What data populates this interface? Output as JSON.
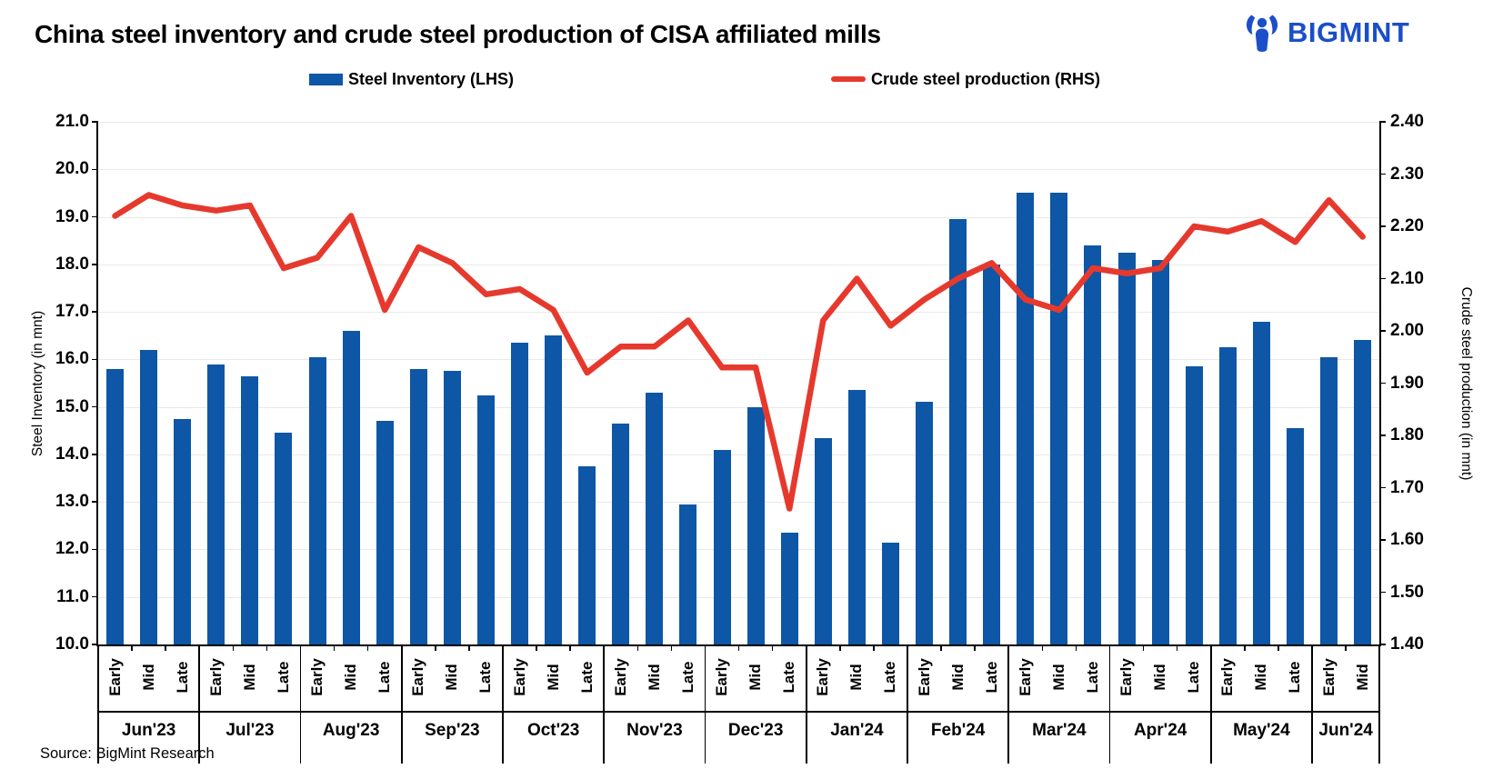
{
  "title": "China steel inventory and crude steel production of CISA affiliated mills",
  "source": "Source: BigMint Research",
  "logo": {
    "text": "BIGMINT"
  },
  "colors": {
    "bar": "#0E56A6",
    "line": "#E6392E",
    "grid": "#E9E9E9",
    "axis": "#000000",
    "logo_blue": "#1B4EC8"
  },
  "legend": [
    {
      "label": "Steel Inventory (LHS)",
      "type": "bar"
    },
    {
      "label": "Crude steel production (RHS)",
      "type": "line"
    }
  ],
  "chart_data": {
    "type": "bar+line combo",
    "grid": "horizontal major gridlines on",
    "legend_position": "top",
    "months": [
      {
        "label": "Jun'23",
        "periods": [
          "Early",
          "Mid",
          "Late"
        ]
      },
      {
        "label": "Jul'23",
        "periods": [
          "Early",
          "Mid",
          "Late"
        ]
      },
      {
        "label": "Aug'23",
        "periods": [
          "Early",
          "Mid",
          "Late"
        ]
      },
      {
        "label": "Sep'23",
        "periods": [
          "Early",
          "Mid",
          "Late"
        ]
      },
      {
        "label": "Oct'23",
        "periods": [
          "Early",
          "Mid",
          "Late"
        ]
      },
      {
        "label": "Nov'23",
        "periods": [
          "Early",
          "Mid",
          "Late"
        ]
      },
      {
        "label": "Dec'23",
        "periods": [
          "Early",
          "Mid",
          "Late"
        ]
      },
      {
        "label": "Jan'24",
        "periods": [
          "Early",
          "Mid",
          "Late"
        ]
      },
      {
        "label": "Feb'24",
        "periods": [
          "Early",
          "Mid",
          "Late"
        ]
      },
      {
        "label": "Mar'24",
        "periods": [
          "Early",
          "Mid",
          "Late"
        ]
      },
      {
        "label": "Apr'24",
        "periods": [
          "Early",
          "Mid",
          "Late"
        ]
      },
      {
        "label": "May'24",
        "periods": [
          "Early",
          "Mid",
          "Late"
        ]
      },
      {
        "label": "Jun'24",
        "periods": [
          "Early",
          "Mid"
        ]
      }
    ],
    "series": [
      {
        "name": "Steel Inventory (LHS)",
        "type": "bar",
        "axis": "left",
        "values": [
          15.8,
          16.2,
          14.75,
          15.9,
          15.65,
          14.45,
          16.05,
          16.6,
          14.7,
          15.8,
          15.75,
          15.25,
          16.35,
          16.5,
          13.75,
          14.65,
          15.3,
          12.95,
          14.1,
          15.0,
          12.35,
          14.35,
          15.35,
          12.15,
          15.1,
          18.95,
          18.0,
          19.5,
          19.5,
          18.4,
          18.25,
          18.1,
          15.85,
          16.25,
          16.8,
          14.55,
          16.05,
          16.4
        ]
      },
      {
        "name": "Crude steel production (RHS)",
        "type": "line",
        "axis": "right",
        "values": [
          2.22,
          2.26,
          2.24,
          2.23,
          2.24,
          2.12,
          2.14,
          2.22,
          2.04,
          2.16,
          2.13,
          2.07,
          2.08,
          2.04,
          1.92,
          1.97,
          1.97,
          2.02,
          1.93,
          1.93,
          1.66,
          2.02,
          2.1,
          2.01,
          2.06,
          2.1,
          2.13,
          2.06,
          2.04,
          2.12,
          2.11,
          2.12,
          2.2,
          2.19,
          2.21,
          2.17,
          2.25,
          2.18
        ]
      }
    ],
    "left_axis": {
      "title": "Steel Inventory (in mnt)",
      "min": 10.0,
      "max": 21.0,
      "step": 1.0,
      "format": "0.0"
    },
    "right_axis": {
      "title": "Crude steel production (in mnt)",
      "min": 1.4,
      "max": 2.4,
      "step": 0.1,
      "format": "0.00"
    }
  }
}
